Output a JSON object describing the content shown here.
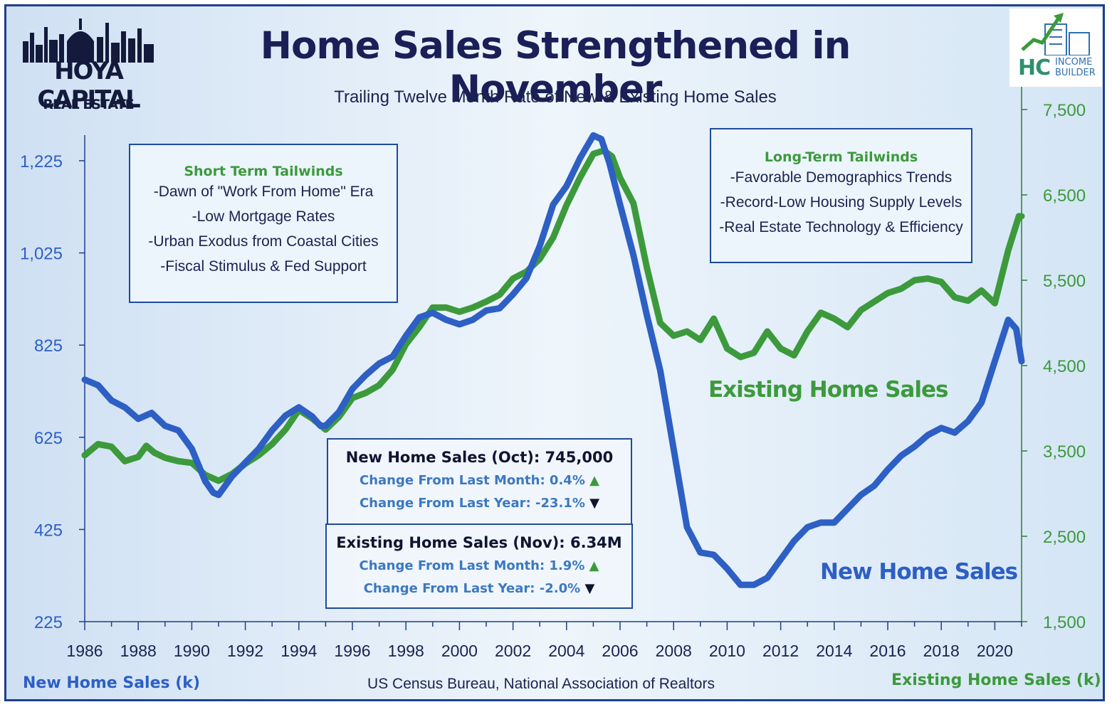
{
  "header": {
    "title": "Home Sales Strengthened in November",
    "subtitle": "Trailing Twelve Month Rate of New & Existing Home Sales"
  },
  "logos": {
    "left_main": "HOYA CAPITAL",
    "left_sub": "REAL ESTATE",
    "right_main": "HC",
    "right_sub1": "INCOME",
    "right_sub2": "BUILDER"
  },
  "boxes": {
    "short_term": {
      "heading": "Short Term Tailwinds",
      "items": [
        "-Dawn of \"Work From Home\" Era",
        "-Low Mortgage Rates",
        "-Urban Exodus from Coastal Cities",
        "-Fiscal Stimulus & Fed Support"
      ]
    },
    "long_term": {
      "heading": "Long-Term Tailwinds",
      "items": [
        "-Favorable Demographics Trends",
        "-Record-Low Housing Supply Levels",
        "-Real Estate Technology & Efficiency"
      ]
    },
    "new_stats": {
      "heading": "New Home Sales (Oct): 745,000",
      "month": "Change From Last Month: 0.4%",
      "year": "Change From Last Year: -23.1%"
    },
    "existing_stats": {
      "heading": "Existing Home Sales (Nov): 6.34M",
      "month": "Change From Last Month: 1.9%",
      "year": "Change From Last Year: -2.0%"
    }
  },
  "arrows": {
    "up": "▲",
    "down": "▼"
  },
  "colors": {
    "new": "#2d5fc4",
    "existing": "#3c9a3c",
    "axis": "#1e3f8a"
  },
  "chart_data": {
    "type": "line",
    "xlabel": "",
    "x_ticks": [
      "1986",
      "1988",
      "1990",
      "1992",
      "1994",
      "1996",
      "1998",
      "2000",
      "2002",
      "2004",
      "2006",
      "2008",
      "2010",
      "2012",
      "2014",
      "2016",
      "2018",
      "2020"
    ],
    "xlim": [
      1986,
      2021
    ],
    "left_axis": {
      "title": "New Home Sales (k)",
      "ylim": [
        225,
        1290
      ],
      "ticks": [
        "225",
        "425",
        "625",
        "825",
        "1,025",
        "1,225"
      ]
    },
    "right_axis": {
      "title": "Existing Home Sales (k)",
      "ylim": [
        1500,
        7750
      ],
      "ticks": [
        "1,500",
        "2,500",
        "3,500",
        "4,500",
        "5,500",
        "6,500",
        "7,500"
      ]
    },
    "series": [
      {
        "name": "New Home Sales",
        "axis": "left",
        "points": [
          [
            1986.0,
            750
          ],
          [
            1986.5,
            738
          ],
          [
            1987.0,
            705
          ],
          [
            1987.5,
            690
          ],
          [
            1988.0,
            665
          ],
          [
            1988.5,
            678
          ],
          [
            1989.0,
            650
          ],
          [
            1989.5,
            640
          ],
          [
            1990.0,
            600
          ],
          [
            1990.5,
            530
          ],
          [
            1990.8,
            505
          ],
          [
            1991.0,
            500
          ],
          [
            1991.5,
            540
          ],
          [
            1992.0,
            570
          ],
          [
            1992.5,
            600
          ],
          [
            1993.0,
            640
          ],
          [
            1993.5,
            672
          ],
          [
            1994.0,
            690
          ],
          [
            1994.5,
            670
          ],
          [
            1994.8,
            650
          ],
          [
            1995.0,
            650
          ],
          [
            1995.5,
            680
          ],
          [
            1996.0,
            730
          ],
          [
            1996.5,
            760
          ],
          [
            1997.0,
            785
          ],
          [
            1997.5,
            800
          ],
          [
            1998.0,
            845
          ],
          [
            1998.5,
            885
          ],
          [
            1999.0,
            895
          ],
          [
            1999.5,
            880
          ],
          [
            2000.0,
            870
          ],
          [
            2000.5,
            880
          ],
          [
            2001.0,
            900
          ],
          [
            2001.5,
            905
          ],
          [
            2002.0,
            935
          ],
          [
            2002.5,
            970
          ],
          [
            2003.0,
            1040
          ],
          [
            2003.5,
            1130
          ],
          [
            2004.0,
            1170
          ],
          [
            2004.5,
            1230
          ],
          [
            2005.0,
            1280
          ],
          [
            2005.3,
            1272
          ],
          [
            2005.6,
            1220
          ],
          [
            2006.0,
            1130
          ],
          [
            2006.5,
            1020
          ],
          [
            2007.0,
            890
          ],
          [
            2007.5,
            770
          ],
          [
            2008.0,
            600
          ],
          [
            2008.5,
            430
          ],
          [
            2009.0,
            375
          ],
          [
            2009.5,
            370
          ],
          [
            2010.0,
            340
          ],
          [
            2010.5,
            305
          ],
          [
            2011.0,
            305
          ],
          [
            2011.5,
            320
          ],
          [
            2012.0,
            360
          ],
          [
            2012.5,
            400
          ],
          [
            2013.0,
            430
          ],
          [
            2013.5,
            440
          ],
          [
            2014.0,
            440
          ],
          [
            2014.5,
            470
          ],
          [
            2015.0,
            500
          ],
          [
            2015.5,
            520
          ],
          [
            2016.0,
            555
          ],
          [
            2016.5,
            585
          ],
          [
            2017.0,
            605
          ],
          [
            2017.5,
            630
          ],
          [
            2018.0,
            645
          ],
          [
            2018.5,
            635
          ],
          [
            2019.0,
            660
          ],
          [
            2019.5,
            700
          ],
          [
            2020.0,
            790
          ],
          [
            2020.5,
            880
          ],
          [
            2020.8,
            860
          ],
          [
            2021.0,
            790
          ]
        ]
      },
      {
        "name": "Existing Home Sales",
        "axis": "right",
        "points": [
          [
            1986.0,
            3450
          ],
          [
            1986.5,
            3580
          ],
          [
            1987.0,
            3550
          ],
          [
            1987.5,
            3380
          ],
          [
            1988.0,
            3430
          ],
          [
            1988.3,
            3560
          ],
          [
            1988.6,
            3480
          ],
          [
            1989.0,
            3420
          ],
          [
            1989.5,
            3380
          ],
          [
            1990.0,
            3360
          ],
          [
            1990.5,
            3220
          ],
          [
            1991.0,
            3150
          ],
          [
            1991.5,
            3230
          ],
          [
            1992.0,
            3350
          ],
          [
            1992.5,
            3450
          ],
          [
            1993.0,
            3580
          ],
          [
            1993.5,
            3750
          ],
          [
            1994.0,
            3980
          ],
          [
            1994.5,
            3880
          ],
          [
            1995.0,
            3750
          ],
          [
            1995.5,
            3900
          ],
          [
            1996.0,
            4120
          ],
          [
            1996.5,
            4180
          ],
          [
            1997.0,
            4270
          ],
          [
            1997.5,
            4450
          ],
          [
            1998.0,
            4750
          ],
          [
            1998.5,
            4950
          ],
          [
            1999.0,
            5180
          ],
          [
            1999.5,
            5180
          ],
          [
            2000.0,
            5130
          ],
          [
            2000.5,
            5180
          ],
          [
            2001.0,
            5250
          ],
          [
            2001.5,
            5330
          ],
          [
            2002.0,
            5520
          ],
          [
            2002.5,
            5600
          ],
          [
            2003.0,
            5750
          ],
          [
            2003.5,
            6000
          ],
          [
            2004.0,
            6380
          ],
          [
            2004.5,
            6700
          ],
          [
            2005.0,
            6980
          ],
          [
            2005.4,
            7020
          ],
          [
            2005.7,
            6950
          ],
          [
            2006.0,
            6700
          ],
          [
            2006.5,
            6400
          ],
          [
            2007.0,
            5650
          ],
          [
            2007.5,
            5000
          ],
          [
            2008.0,
            4850
          ],
          [
            2008.5,
            4900
          ],
          [
            2009.0,
            4800
          ],
          [
            2009.5,
            5050
          ],
          [
            2010.0,
            4700
          ],
          [
            2010.5,
            4600
          ],
          [
            2011.0,
            4650
          ],
          [
            2011.5,
            4900
          ],
          [
            2012.0,
            4700
          ],
          [
            2012.5,
            4620
          ],
          [
            2013.0,
            4900
          ],
          [
            2013.5,
            5120
          ],
          [
            2014.0,
            5050
          ],
          [
            2014.5,
            4950
          ],
          [
            2015.0,
            5150
          ],
          [
            2015.5,
            5250
          ],
          [
            2016.0,
            5350
          ],
          [
            2016.5,
            5400
          ],
          [
            2017.0,
            5500
          ],
          [
            2017.5,
            5520
          ],
          [
            2018.0,
            5480
          ],
          [
            2018.5,
            5300
          ],
          [
            2019.0,
            5260
          ],
          [
            2019.5,
            5380
          ],
          [
            2020.0,
            5230
          ],
          [
            2020.5,
            5850
          ],
          [
            2020.9,
            6250
          ],
          [
            2021.0,
            6250
          ]
        ]
      }
    ],
    "annotations": [
      "Existing Home Sales",
      "New Home Sales"
    ],
    "source": "US Census Bureau, National Association of Realtors",
    "grid": false
  }
}
